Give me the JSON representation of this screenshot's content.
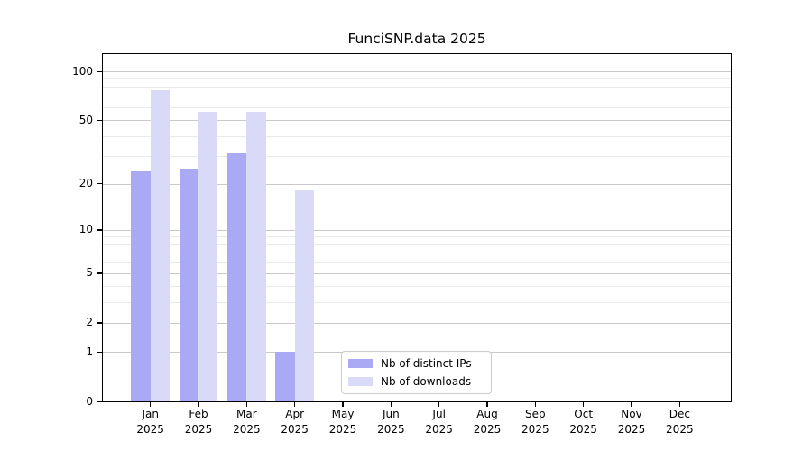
{
  "chart_data": {
    "type": "bar",
    "title": "FunciSNP.data 2025",
    "x_year": "2025",
    "categories": [
      "Jan",
      "Feb",
      "Mar",
      "Apr",
      "May",
      "Jun",
      "Jul",
      "Aug",
      "Sep",
      "Oct",
      "Nov",
      "Dec"
    ],
    "series": [
      {
        "name": "Nb of distinct IPs",
        "color": "#a9a9f4",
        "values": [
          24,
          25,
          31,
          1,
          0,
          0,
          0,
          0,
          0,
          0,
          0,
          0
        ]
      },
      {
        "name": "Nb of downloads",
        "color": "#d9d9f8",
        "values": [
          77,
          56,
          56,
          18,
          0,
          0,
          0,
          0,
          0,
          0,
          0,
          0
        ]
      }
    ],
    "yscale": "log1p",
    "ylim": [
      0,
      128
    ],
    "yticks": [
      0,
      1,
      2,
      5,
      10,
      20,
      50,
      100
    ],
    "minor_yticks": [
      3,
      4,
      6,
      7,
      8,
      9,
      30,
      40,
      60,
      70,
      80,
      90
    ],
    "grid": "horizontal",
    "grid_color_major": "#c9c9c9",
    "grid_color_minor": "#e9e9e9",
    "axis_color": "#000000",
    "legend_position": "inside-lower-center",
    "legend_items": [
      "Nb of distinct IPs",
      "Nb of downloads"
    ]
  }
}
